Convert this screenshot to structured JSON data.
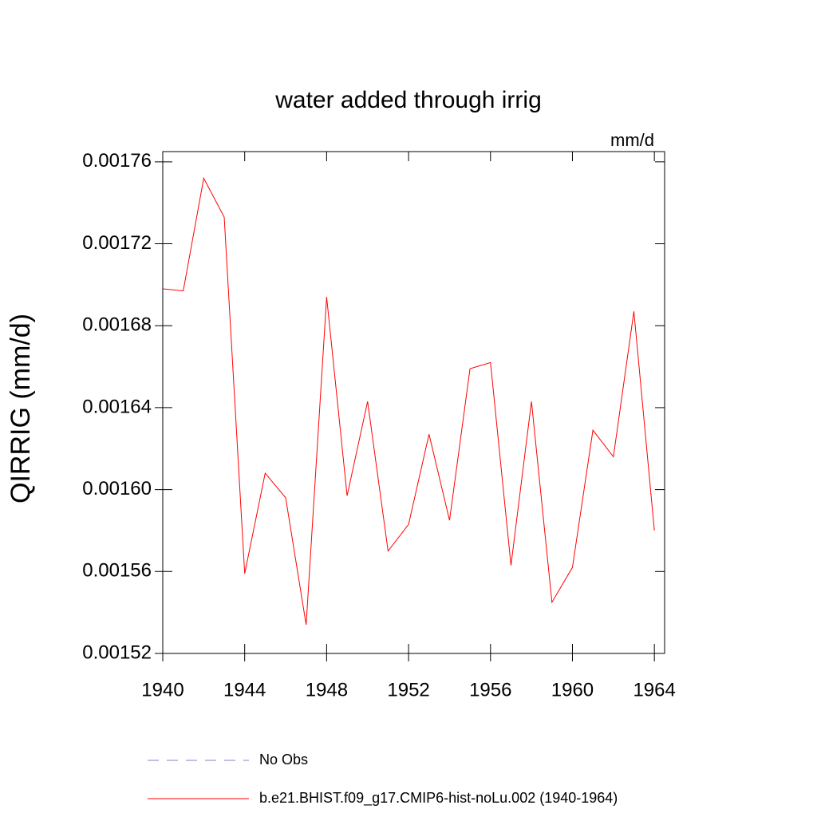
{
  "chart_data": {
    "type": "line",
    "title": "water added through irrig",
    "units": "mm/d",
    "y_label": "QIRRIG  (mm/d)",
    "x": [
      1940,
      1941,
      1942,
      1943,
      1944,
      1945,
      1946,
      1947,
      1948,
      1949,
      1950,
      1951,
      1952,
      1953,
      1954,
      1955,
      1956,
      1957,
      1958,
      1959,
      1960,
      1961,
      1962,
      1963,
      1964
    ],
    "xlim": [
      1940,
      1964.5
    ],
    "xticks": [
      1940,
      1944,
      1948,
      1952,
      1956,
      1960,
      1964
    ],
    "ylim": [
      0.00152,
      0.001765
    ],
    "yticks": [
      0.00152,
      0.00156,
      {
        "value": 0.0016,
        "label": "0.00160"
      },
      0.00164,
      0.00168,
      0.00172,
      0.00176
    ],
    "series": [
      {
        "name": "No Obs",
        "color": "#8080c8",
        "dash": "dashed",
        "values": [
          null,
          null,
          null,
          null,
          null,
          null,
          null,
          null,
          null,
          null,
          null,
          null,
          null,
          null,
          null,
          null,
          null,
          null,
          null,
          null,
          null,
          null,
          null,
          null,
          null
        ]
      },
      {
        "name": "b.e21.BHIST.f09_g17.CMIP6-hist-noLu.002 (1940-1964)",
        "color": "#ff0000",
        "dash": "solid",
        "values": [
          0.001698,
          0.001697,
          0.001752,
          0.001733,
          0.001559,
          0.001608,
          0.001596,
          0.001534,
          0.001694,
          0.001597,
          0.001643,
          0.00157,
          0.001583,
          0.001627,
          0.001585,
          0.001659,
          0.001662,
          0.001563,
          0.001643,
          0.001545,
          0.001562,
          0.001629,
          0.001616,
          0.001687,
          0.00158
        ]
      }
    ]
  }
}
